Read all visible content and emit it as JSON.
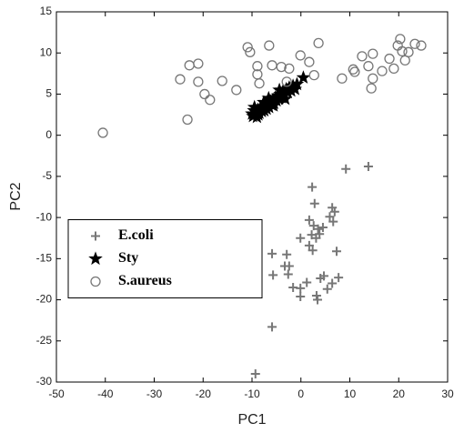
{
  "chart_data": {
    "type": "scatter",
    "xlabel": "PC1",
    "ylabel": "PC2",
    "xlim": [
      -50,
      30
    ],
    "ylim": [
      -30,
      15
    ],
    "xticks": [
      -50,
      -40,
      -30,
      -20,
      -10,
      0,
      10,
      20,
      30
    ],
    "yticks": [
      -30,
      -25,
      -20,
      -15,
      -10,
      -5,
      0,
      5,
      10,
      15
    ],
    "grid": false,
    "legend": "center left",
    "series": [
      {
        "name": "E.coli",
        "color": "#777777",
        "marker": "plus",
        "x": [
          9.2,
          13.8,
          2.3,
          6.4,
          6.9,
          5.9,
          6.6,
          2.8,
          1.7,
          2.6,
          3.5,
          2.2,
          3.1,
          3.8,
          4.5,
          1.7,
          2.4,
          -0.1,
          -2.9,
          -2.4,
          -3.3,
          -5.9,
          -5.7,
          -2.6,
          7.3,
          4.7,
          4.0,
          6.4,
          7.7,
          5.4,
          3.2,
          -0.1,
          -0.1,
          -1.6,
          1.2,
          -5.9,
          -9.3,
          3.4
        ],
        "values": [
          -4.1,
          -3.8,
          -6.3,
          -8.8,
          -9.3,
          -9.9,
          -10.5,
          -8.3,
          -10.3,
          -11.0,
          -11.4,
          -12.1,
          -12.5,
          -12.0,
          -11.2,
          -13.4,
          -14.0,
          -12.5,
          -14.5,
          -15.9,
          -15.9,
          -14.4,
          -17.0,
          -16.9,
          -14.1,
          -17.1,
          -17.4,
          -18.0,
          -17.3,
          -18.7,
          -19.5,
          -18.6,
          -19.6,
          -18.5,
          -17.9,
          -23.3,
          -29.0,
          -20.0
        ]
      },
      {
        "name": "Sty",
        "color": "#000000",
        "marker": "star",
        "x": [
          -10,
          -9.8,
          -9.6,
          -9.4,
          -9.2,
          -9,
          -8.8,
          -8.5,
          -8.3,
          -8,
          -7.8,
          -7.5,
          -7.2,
          -7,
          -6.7,
          -6.5,
          -6.2,
          -6,
          -5.7,
          -5.5,
          -5.2,
          -5,
          -4.7,
          -4.5,
          -4.2,
          -4,
          -3.7,
          -3.4,
          -3,
          -2.7,
          -2.4,
          -2,
          -1.6,
          -1.2,
          -0.8,
          0.5,
          -9.5,
          -8.7,
          -7.6,
          -6.6,
          -5.6,
          -4.4,
          -3.2
        ],
        "values": [
          2.6,
          2.3,
          3.0,
          2.5,
          2.8,
          2.2,
          3.1,
          2.7,
          3.3,
          2.9,
          3.5,
          3.0,
          3.8,
          3.2,
          3.9,
          3.4,
          4.1,
          3.7,
          4.3,
          3.9,
          4.6,
          4.2,
          4.8,
          4.4,
          5.0,
          4.6,
          5.3,
          4.9,
          5.6,
          5.2,
          5.8,
          5.4,
          6.0,
          5.6,
          6.2,
          7.0,
          3.4,
          2.5,
          4.0,
          4.5,
          3.6,
          5.5,
          4.4
        ]
      },
      {
        "name": "S.aureus",
        "color": "#777777",
        "marker": "circle",
        "x": [
          -40.5,
          -24.7,
          -22.8,
          -21,
          -21,
          -19.7,
          -18.6,
          -23.2,
          -16.1,
          -13.2,
          -10.9,
          -10.4,
          -8.9,
          -8.9,
          -6.5,
          -5.9,
          -4,
          -2.4,
          -0.1,
          1.7,
          3.6,
          -2.9,
          -8.5,
          2.7,
          8.4,
          10.7,
          14.7,
          13.8,
          12.5,
          14.7,
          16.6,
          18.1,
          20.3,
          19.8,
          20.7,
          22,
          23.3,
          24.6,
          19,
          21.3,
          14.4,
          11
        ],
        "values": [
          0.3,
          6.8,
          8.5,
          8.7,
          6.5,
          5.0,
          4.3,
          1.9,
          6.6,
          5.5,
          10.7,
          10.1,
          8.4,
          7.4,
          10.9,
          8.5,
          8.3,
          8.1,
          9.7,
          8.9,
          11.2,
          6.5,
          6.3,
          7.3,
          6.9,
          8.0,
          9.9,
          8.4,
          9.6,
          6.9,
          7.8,
          9.3,
          11.7,
          10.9,
          10.2,
          10.1,
          11.1,
          10.9,
          8.1,
          9.1,
          5.7,
          7.7
        ]
      }
    ]
  }
}
